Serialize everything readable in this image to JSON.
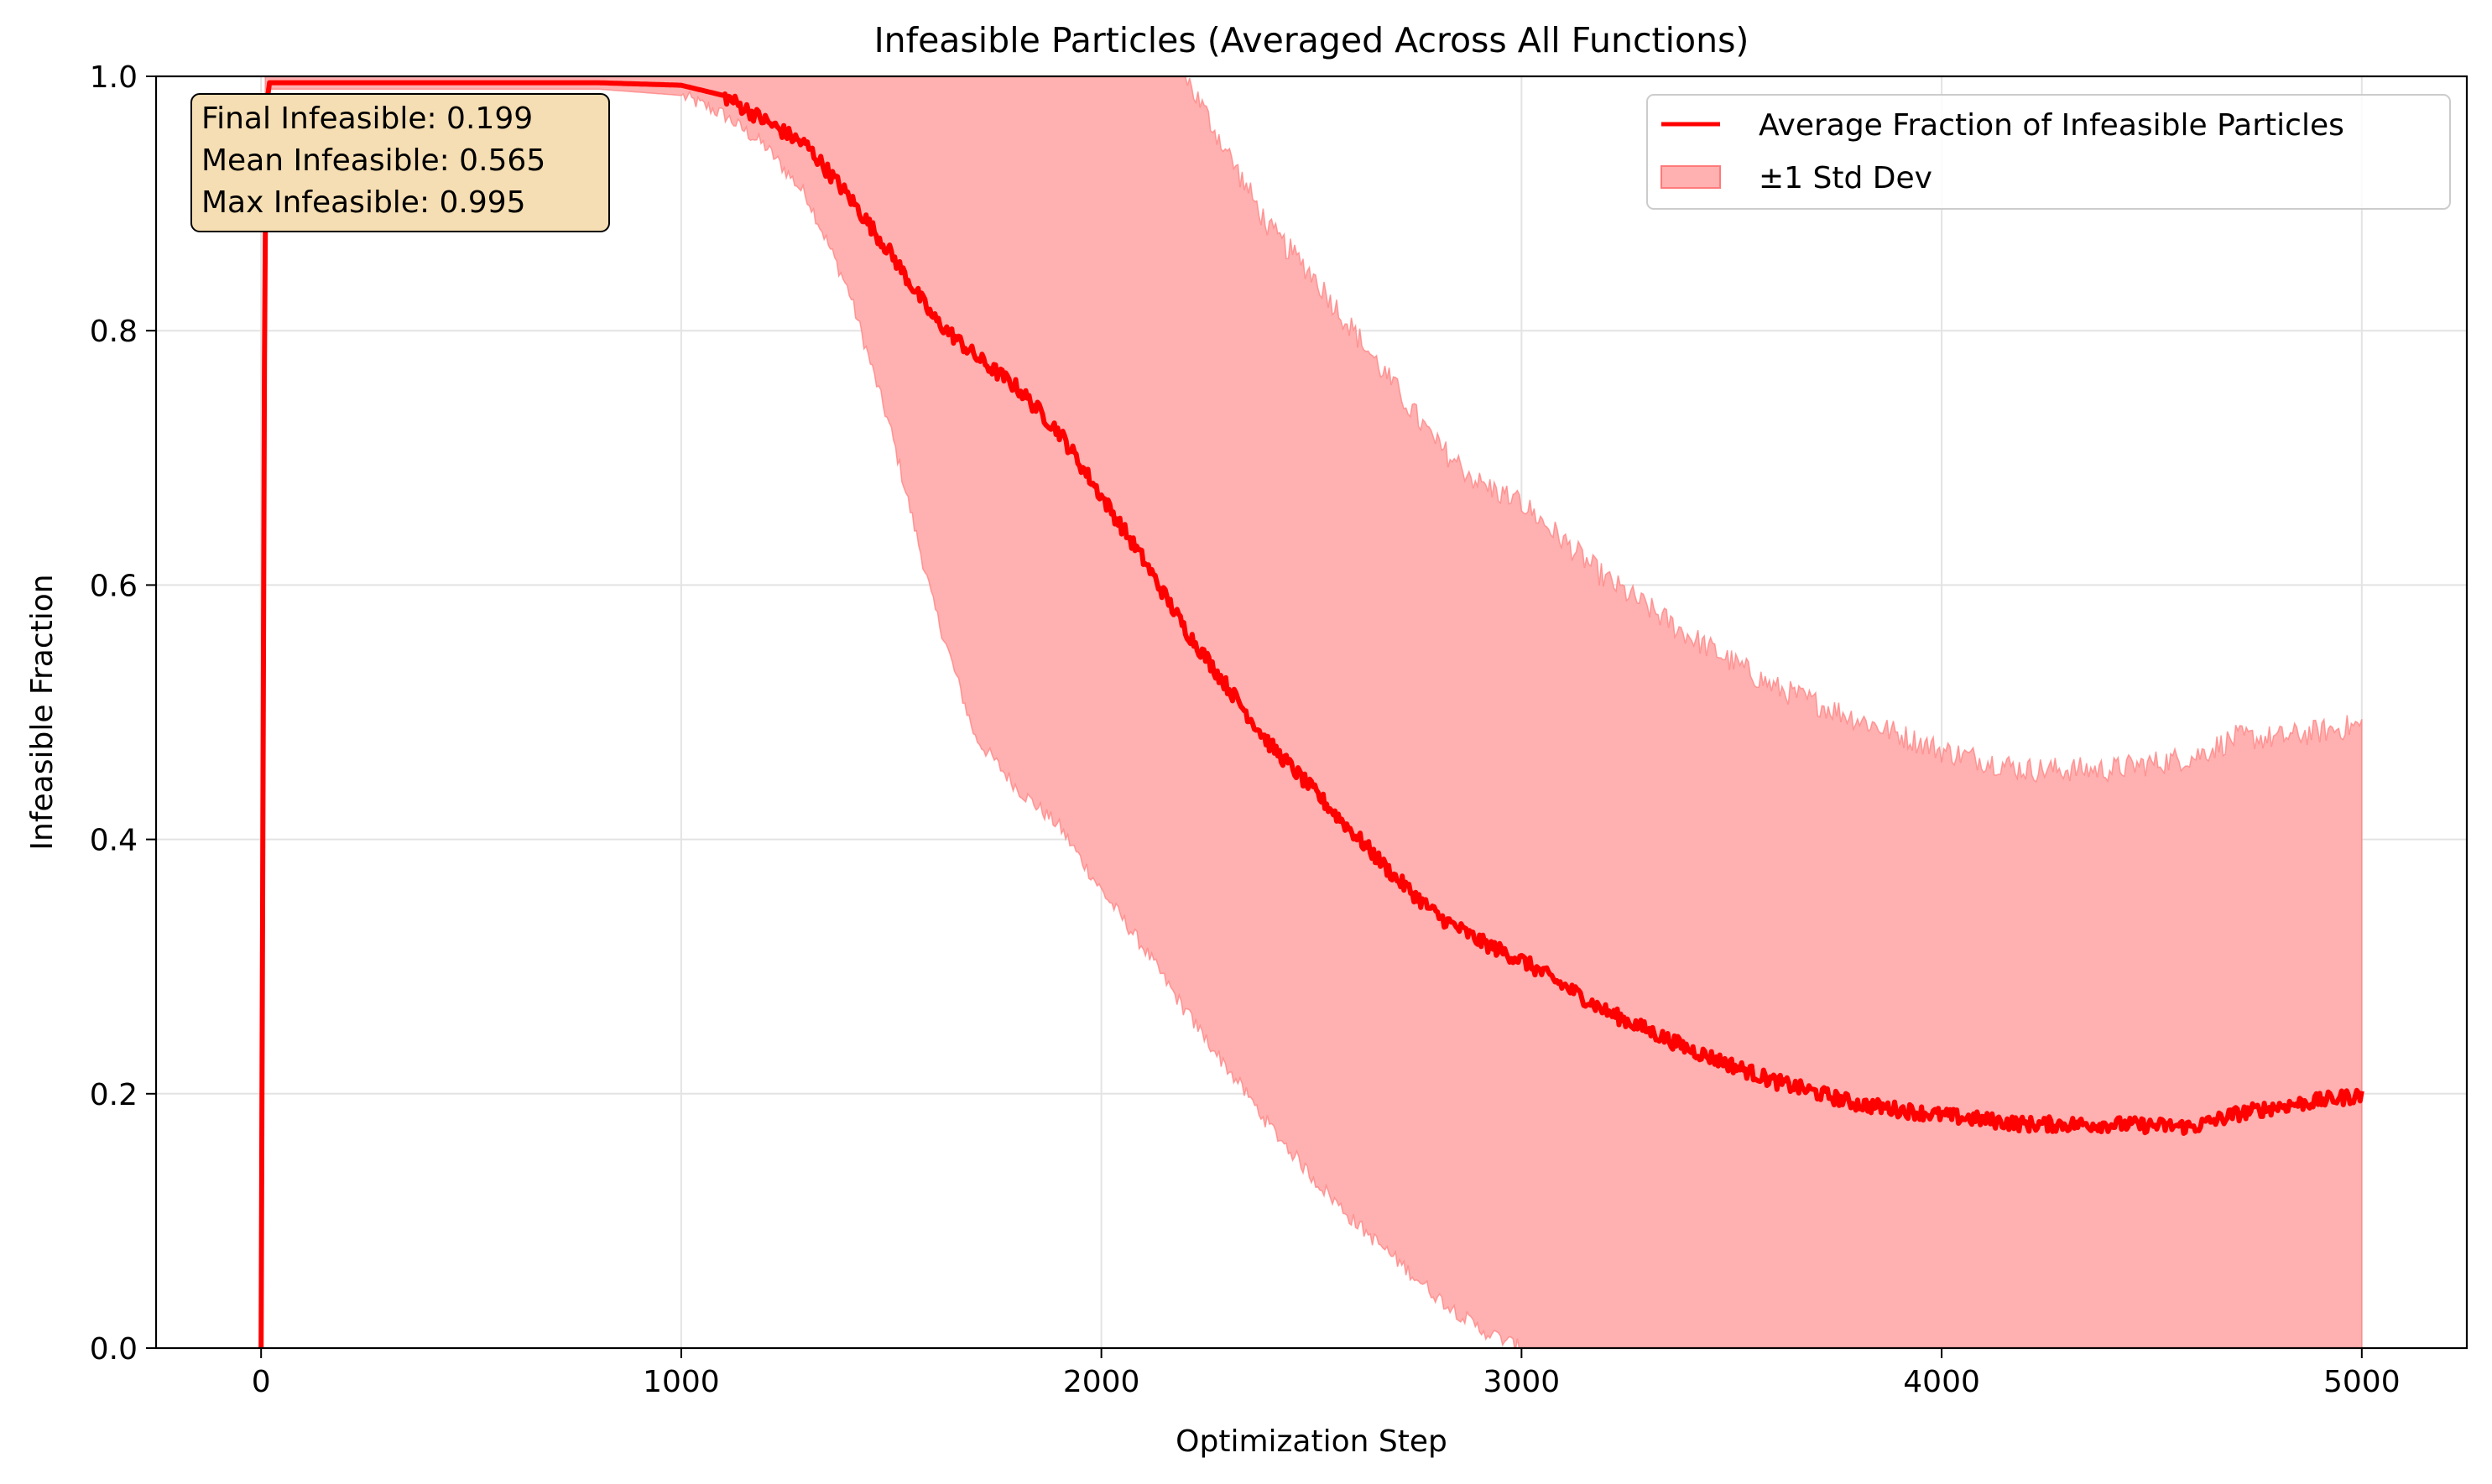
{
  "chart_data": {
    "type": "line",
    "title": "Infeasible Particles (Averaged Across All Functions)",
    "xlabel": "Optimization Step",
    "ylabel": "Infeasible Fraction",
    "xlim": [
      -250,
      5250
    ],
    "ylim": [
      0.0,
      1.0
    ],
    "xticks": [
      0,
      1000,
      2000,
      3000,
      4000,
      5000
    ],
    "xtick_labels": [
      "0",
      "1000",
      "2000",
      "3000",
      "4000",
      "5000"
    ],
    "yticks": [
      0.0,
      0.2,
      0.4,
      0.6,
      0.8,
      1.0
    ],
    "ytick_labels": [
      "0.0",
      "0.2",
      "0.4",
      "0.6",
      "0.8",
      "1.0"
    ],
    "grid": true,
    "legend_position": "top-right",
    "legend": [
      {
        "label": "Average Fraction of Infeasible Particles",
        "kind": "line"
      },
      {
        "label": "±1 Std Dev",
        "kind": "fill"
      }
    ],
    "annotation": [
      "Final Infeasible: 0.199",
      "Mean Infeasible: 0.565",
      "Max Infeasible: 0.995"
    ],
    "colors": {
      "mean_line": "#ff0000",
      "band_fill": "#ffb0b0",
      "band_edge": "#ff7a7a",
      "annotation_bg": "#f5deb3",
      "grid": "#e3e3e3"
    },
    "series": [
      {
        "name": "Average Fraction of Infeasible Particles",
        "x": [
          0,
          10,
          20,
          100,
          200,
          400,
          600,
          800,
          1000,
          1100,
          1200,
          1300,
          1400,
          1500,
          1600,
          1700,
          1800,
          1900,
          2000,
          2100,
          2200,
          2300,
          2400,
          2500,
          2600,
          2700,
          2800,
          2900,
          3000,
          3200,
          3400,
          3600,
          3800,
          4000,
          4200,
          4400,
          4600,
          4700,
          4800,
          5000
        ],
        "values": [
          0.0,
          0.97,
          0.995,
          0.995,
          0.995,
          0.995,
          0.995,
          0.995,
          0.993,
          0.985,
          0.965,
          0.945,
          0.905,
          0.86,
          0.81,
          0.78,
          0.755,
          0.72,
          0.67,
          0.62,
          0.565,
          0.52,
          0.475,
          0.44,
          0.405,
          0.37,
          0.34,
          0.32,
          0.305,
          0.265,
          0.235,
          0.21,
          0.192,
          0.183,
          0.176,
          0.176,
          0.174,
          0.184,
          0.19,
          0.199
        ]
      },
      {
        "name": "±1 Std Dev",
        "x": [
          0,
          10,
          20,
          100,
          200,
          400,
          600,
          800,
          1000,
          1100,
          1200,
          1300,
          1400,
          1500,
          1600,
          1700,
          1800,
          1900,
          2000,
          2100,
          2200,
          2300,
          2400,
          2500,
          2600,
          2700,
          2800,
          2900,
          3000,
          3200,
          3400,
          3600,
          3800,
          4000,
          4200,
          4400,
          4600,
          4700,
          4800,
          5000
        ],
        "upper": [
          0.0,
          1.0,
          1.0,
          1.0,
          1.0,
          1.0,
          1.0,
          1.0,
          1.0,
          1.0,
          1.0,
          1.0,
          1.0,
          1.0,
          1.0,
          1.0,
          1.0,
          1.0,
          1.0,
          1.0,
          1.0,
          0.94,
          0.88,
          0.845,
          0.8,
          0.755,
          0.71,
          0.68,
          0.665,
          0.605,
          0.56,
          0.52,
          0.495,
          0.47,
          0.455,
          0.455,
          0.465,
          0.48,
          0.48,
          0.49
        ],
        "lower": [
          0.0,
          0.99,
          0.99,
          0.99,
          0.99,
          0.99,
          0.99,
          0.99,
          0.985,
          0.97,
          0.945,
          0.905,
          0.83,
          0.72,
          0.585,
          0.48,
          0.44,
          0.41,
          0.36,
          0.315,
          0.265,
          0.22,
          0.175,
          0.135,
          0.1,
          0.07,
          0.04,
          0.015,
          0.0,
          0.0,
          0.0,
          0.0,
          0.0,
          0.0,
          0.0,
          0.0,
          0.0,
          0.0,
          0.0,
          0.0
        ]
      }
    ]
  }
}
